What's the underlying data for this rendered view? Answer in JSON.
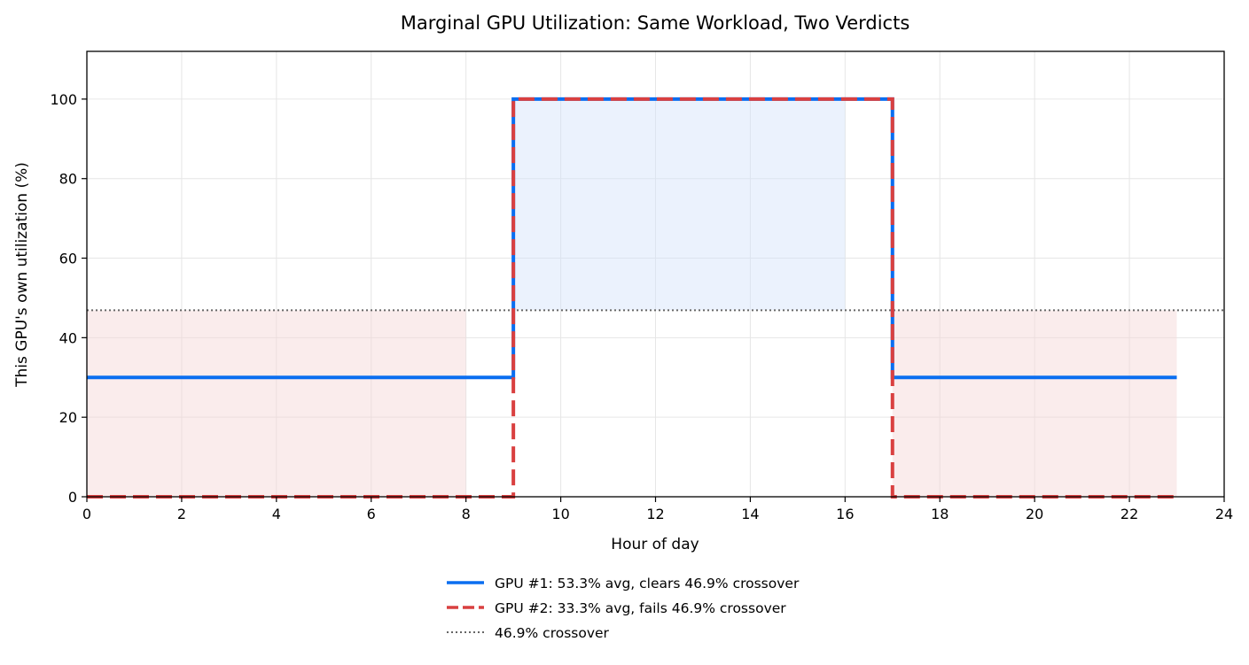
{
  "chart_data": {
    "type": "line",
    "title": "Marginal GPU Utilization: Same Workload, Two Verdicts",
    "xlabel": "Hour of day",
    "ylabel": "This GPU's own utilization (%)",
    "xlim": [
      0,
      24
    ],
    "ylim": [
      0,
      112
    ],
    "xticks": [
      0,
      2,
      4,
      6,
      8,
      10,
      12,
      14,
      16,
      18,
      20,
      22,
      24
    ],
    "yticks": [
      0,
      20,
      40,
      60,
      80,
      100
    ],
    "grid": true,
    "legend_position": "bottom-center",
    "series": [
      {
        "name": "GPU #1: 53.3% avg, clears 46.9% crossover",
        "style": "solid",
        "color": "#0a6ef0",
        "x": [
          0,
          9,
          9,
          17,
          17,
          23
        ],
        "y": [
          30,
          30,
          100,
          100,
          30,
          30
        ]
      },
      {
        "name": "GPU #2: 33.3% avg, fails 46.9% crossover",
        "style": "dashed",
        "color": "#d94040",
        "x": [
          0,
          9,
          9,
          17,
          17,
          23
        ],
        "y": [
          0,
          0,
          100,
          100,
          0,
          0
        ]
      }
    ],
    "reference_line": {
      "name": "46.9% crossover",
      "y": 46.9,
      "style": "dotted",
      "color": "#666666"
    },
    "shaded_regions": [
      {
        "x_from": 0,
        "x_to": 8,
        "y_from": 0,
        "y_to": 46.9,
        "color": "#f5d5d5"
      },
      {
        "x_from": 17,
        "x_to": 23,
        "y_from": 0,
        "y_to": 46.9,
        "color": "#f5d5d5"
      },
      {
        "x_from": 9,
        "x_to": 16,
        "y_from": 46.9,
        "y_to": 100,
        "color": "#d3e3fa"
      }
    ]
  }
}
